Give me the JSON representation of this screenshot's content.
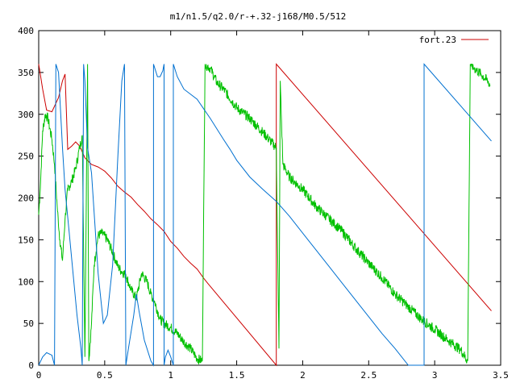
{
  "chart_data": {
    "type": "line",
    "title": "m1/n1.5/q2.0/r-+.32-j168/M0.5/512",
    "xlabel": "",
    "ylabel": "",
    "xlim": [
      0,
      3.5
    ],
    "ylim": [
      0,
      400
    ],
    "xticks": [
      0,
      0.5,
      1,
      1.5,
      2,
      2.5,
      3,
      3.5
    ],
    "xtick_labels": [
      "0",
      "0.5",
      "1",
      "1.5",
      "2",
      "2.5",
      "3",
      "3.5"
    ],
    "yticks": [
      0,
      50,
      100,
      150,
      200,
      250,
      300,
      350,
      400
    ],
    "ytick_labels": [
      "0",
      "50",
      "100",
      "150",
      "200",
      "250",
      "300",
      "350",
      "400"
    ],
    "grid": false,
    "legend_position": "top-right",
    "series": [
      {
        "name": "fort.23",
        "color": "#cc0000",
        "noise": 0,
        "points": [
          [
            0,
            360
          ],
          [
            0.03,
            330
          ],
          [
            0.06,
            305
          ],
          [
            0.1,
            303
          ],
          [
            0.15,
            320
          ],
          [
            0.18,
            340
          ],
          [
            0.2,
            348
          ],
          [
            0.22,
            258
          ],
          [
            0.25,
            262
          ],
          [
            0.28,
            267
          ],
          [
            0.31,
            262
          ],
          [
            0.35,
            248
          ],
          [
            0.4,
            240
          ],
          [
            0.45,
            237
          ],
          [
            0.5,
            232
          ],
          [
            0.55,
            224
          ],
          [
            0.6,
            214
          ],
          [
            0.65,
            207
          ],
          [
            0.7,
            201
          ],
          [
            0.75,
            192
          ],
          [
            0.8,
            184
          ],
          [
            0.85,
            175
          ],
          [
            0.9,
            168
          ],
          [
            0.95,
            160
          ],
          [
            1.0,
            148
          ],
          [
            1.05,
            140
          ],
          [
            1.1,
            130
          ],
          [
            1.15,
            122
          ],
          [
            1.2,
            115
          ],
          [
            1.25,
            104
          ],
          [
            1.28,
            98
          ],
          [
            1.8,
            0
          ],
          [
            1.8,
            360
          ],
          [
            3.43,
            65
          ]
        ]
      },
      {
        "name": "",
        "color": "#00c000",
        "noise": 1,
        "points": [
          [
            0,
            180
          ],
          [
            0.01,
            205
          ],
          [
            0.03,
            280
          ],
          [
            0.05,
            300
          ],
          [
            0.07,
            295
          ],
          [
            0.1,
            270
          ],
          [
            0.12,
            240
          ],
          [
            0.14,
            190
          ],
          [
            0.16,
            150
          ],
          [
            0.18,
            125
          ],
          [
            0.2,
            175
          ],
          [
            0.22,
            210
          ],
          [
            0.25,
            220
          ],
          [
            0.28,
            235
          ],
          [
            0.31,
            260
          ],
          [
            0.33,
            275
          ],
          [
            0.35,
            10
          ],
          [
            0.37,
            360
          ],
          [
            0.38,
            5
          ],
          [
            0.4,
            50
          ],
          [
            0.42,
            120
          ],
          [
            0.45,
            155
          ],
          [
            0.48,
            158
          ],
          [
            0.52,
            150
          ],
          [
            0.56,
            135
          ],
          [
            0.6,
            118
          ],
          [
            0.63,
            112
          ],
          [
            0.66,
            108
          ],
          [
            0.7,
            90
          ],
          [
            0.74,
            80
          ],
          [
            0.78,
            110
          ],
          [
            0.82,
            100
          ],
          [
            0.85,
            85
          ],
          [
            0.88,
            75
          ],
          [
            0.92,
            55
          ],
          [
            0.95,
            50
          ],
          [
            1.0,
            45
          ],
          [
            1.05,
            38
          ],
          [
            1.1,
            28
          ],
          [
            1.15,
            20
          ],
          [
            1.2,
            8
          ],
          [
            1.24,
            5
          ],
          [
            1.26,
            360
          ],
          [
            1.3,
            355
          ],
          [
            1.35,
            338
          ],
          [
            1.4,
            330
          ],
          [
            1.5,
            308
          ],
          [
            1.6,
            295
          ],
          [
            1.7,
            278
          ],
          [
            1.8,
            260
          ],
          [
            1.82,
            20
          ],
          [
            1.83,
            340
          ],
          [
            1.85,
            240
          ],
          [
            1.9,
            225
          ],
          [
            2.0,
            210
          ],
          [
            2.1,
            190
          ],
          [
            2.2,
            175
          ],
          [
            2.3,
            160
          ],
          [
            2.4,
            140
          ],
          [
            2.5,
            122
          ],
          [
            2.6,
            105
          ],
          [
            2.7,
            85
          ],
          [
            2.8,
            70
          ],
          [
            2.9,
            55
          ],
          [
            3.0,
            43
          ],
          [
            3.1,
            30
          ],
          [
            3.2,
            18
          ],
          [
            3.25,
            5
          ],
          [
            3.27,
            360
          ],
          [
            3.3,
            355
          ],
          [
            3.35,
            348
          ],
          [
            3.4,
            340
          ],
          [
            3.42,
            335
          ]
        ]
      },
      {
        "name": "",
        "color": "#0070d0",
        "noise": 0,
        "points": [
          [
            0,
            0
          ],
          [
            0.03,
            10
          ],
          [
            0.06,
            15
          ],
          [
            0.1,
            12
          ],
          [
            0.12,
            0
          ],
          [
            0.13,
            360
          ],
          [
            0.15,
            350
          ],
          [
            0.18,
            260
          ],
          [
            0.2,
            210
          ],
          [
            0.23,
            160
          ],
          [
            0.26,
            110
          ],
          [
            0.29,
            60
          ],
          [
            0.32,
            20
          ],
          [
            0.33,
            0
          ],
          [
            0.34,
            360
          ],
          [
            0.35,
            340
          ],
          [
            0.37,
            260
          ],
          [
            0.4,
            230
          ],
          [
            0.45,
            110
          ],
          [
            0.49,
            50
          ],
          [
            0.52,
            60
          ],
          [
            0.56,
            120
          ],
          [
            0.6,
            250
          ],
          [
            0.63,
            340
          ],
          [
            0.65,
            360
          ],
          [
            0.66,
            0
          ],
          [
            0.68,
            20
          ],
          [
            0.72,
            60
          ],
          [
            0.74,
            85
          ],
          [
            0.76,
            65
          ],
          [
            0.8,
            30
          ],
          [
            0.85,
            5
          ],
          [
            0.87,
            0
          ],
          [
            0.87,
            360
          ],
          [
            0.9,
            345
          ],
          [
            0.92,
            345
          ],
          [
            0.94,
            352
          ],
          [
            0.95,
            360
          ],
          [
            0.95,
            0
          ],
          [
            0.96,
            10
          ],
          [
            0.98,
            18
          ],
          [
            1.0,
            10
          ],
          [
            1.02,
            0
          ],
          [
            1.02,
            360
          ],
          [
            1.05,
            345
          ],
          [
            1.1,
            330
          ],
          [
            1.2,
            318
          ],
          [
            1.3,
            295
          ],
          [
            1.4,
            270
          ],
          [
            1.45,
            258
          ],
          [
            1.5,
            245
          ],
          [
            1.6,
            225
          ],
          [
            1.7,
            210
          ],
          [
            1.8,
            196
          ],
          [
            1.9,
            178
          ],
          [
            2.0,
            158
          ],
          [
            2.1,
            138
          ],
          [
            2.2,
            118
          ],
          [
            2.3,
            98
          ],
          [
            2.4,
            78
          ],
          [
            2.5,
            58
          ],
          [
            2.6,
            38
          ],
          [
            2.7,
            20
          ],
          [
            2.8,
            0
          ],
          [
            2.92,
            0
          ],
          [
            2.92,
            360
          ],
          [
            3.43,
            268
          ]
        ]
      }
    ]
  }
}
